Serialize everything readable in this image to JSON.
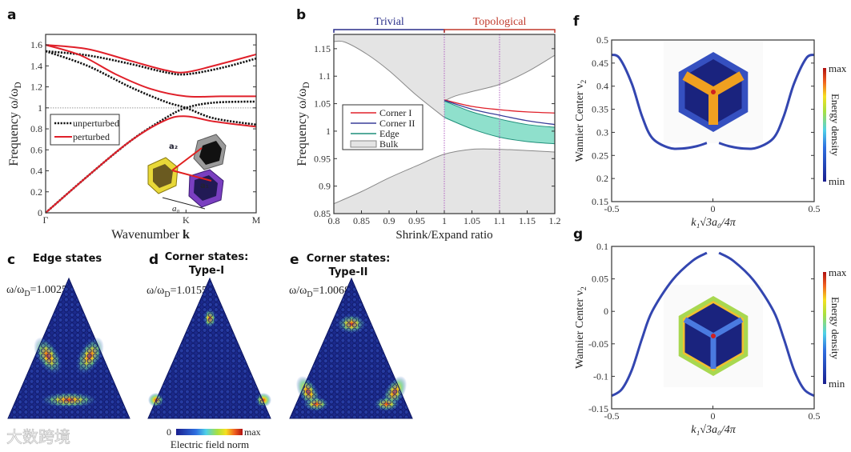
{
  "panel_labels": {
    "a": "a",
    "b": "b",
    "c": "c",
    "d": "d",
    "e": "e",
    "f": "f",
    "g": "g"
  },
  "watermark": "大数跨境",
  "chart_data": [
    {
      "id": "a",
      "type": "line",
      "xlabel": "Wavenumber ",
      "xlabel_bold": "k",
      "ylabel": "Frequency ω/ω",
      "ylabel_sub": "D",
      "xlim": [
        0,
        1.5
      ],
      "ylim": [
        0,
        1.7
      ],
      "xticks": [
        0,
        1,
        1.5
      ],
      "xtick_labels": [
        "Γ",
        "K",
        "M"
      ],
      "yticks": [
        0,
        0.2,
        0.4,
        0.6,
        0.8,
        1,
        1.2,
        1.4,
        1.6
      ],
      "ytick_labels": [
        "0",
        "0.2",
        "0.4",
        "0.6",
        "0.8",
        "1",
        "1.2",
        "1.4",
        "1.6"
      ],
      "reference_line": 1,
      "legend": {
        "position": "center-left",
        "entries": [
          "unperturbed",
          "perturbed"
        ]
      },
      "inset_labels": {
        "a1": "a₁",
        "a2": "a₂",
        "a0": "a₀"
      },
      "series": [
        {
          "name": "unperturbed",
          "color": "#111111",
          "style": "dotted",
          "bands": [
            [
              [
                0,
                0
              ],
              [
                0.3,
                0.35
              ],
              [
                0.6,
                0.68
              ],
              [
                0.85,
                0.9
              ],
              [
                1,
                1.0
              ],
              [
                1.2,
                1.05
              ],
              [
                1.5,
                1.06
              ]
            ],
            [
              [
                0,
                1.54
              ],
              [
                0.3,
                1.4
              ],
              [
                0.6,
                1.2
              ],
              [
                0.85,
                1.06
              ],
              [
                1,
                1.0
              ],
              [
                1.2,
                0.9
              ],
              [
                1.5,
                0.84
              ]
            ],
            [
              [
                0,
                1.54
              ],
              [
                0.3,
                1.5
              ],
              [
                0.6,
                1.42
              ],
              [
                0.85,
                1.34
              ],
              [
                1,
                1.32
              ],
              [
                1.25,
                1.38
              ],
              [
                1.5,
                1.47
              ]
            ]
          ]
        },
        {
          "name": "perturbed",
          "color": "#e0202a",
          "style": "solid",
          "bands": [
            [
              [
                0,
                0
              ],
              [
                0.3,
                0.35
              ],
              [
                0.6,
                0.68
              ],
              [
                0.85,
                0.88
              ],
              [
                1,
                0.92
              ],
              [
                1.2,
                0.87
              ],
              [
                1.5,
                0.82
              ]
            ],
            [
              [
                0,
                1.6
              ],
              [
                0.25,
                1.5
              ],
              [
                0.5,
                1.32
              ],
              [
                0.75,
                1.18
              ],
              [
                1,
                1.11
              ],
              [
                1.25,
                1.11
              ],
              [
                1.5,
                1.11
              ]
            ],
            [
              [
                0,
                1.6
              ],
              [
                0.3,
                1.56
              ],
              [
                0.6,
                1.45
              ],
              [
                0.85,
                1.36
              ],
              [
                1,
                1.34
              ],
              [
                1.25,
                1.42
              ],
              [
                1.5,
                1.51
              ]
            ]
          ]
        }
      ]
    },
    {
      "id": "b",
      "type": "area",
      "xlabel": "Shrink/Expand ratio",
      "ylabel": "Frequency ω/ω",
      "ylabel_sub": "D",
      "xlim": [
        0.8,
        1.2
      ],
      "ylim": [
        0.85,
        1.176
      ],
      "xticks": [
        0.8,
        0.85,
        0.9,
        0.95,
        1,
        1.05,
        1.1,
        1.15,
        1.2
      ],
      "xtick_labels": [
        "0.8",
        "0.85",
        "0.9",
        "0.95",
        "1",
        "1.05",
        "1.1",
        "1.15",
        "1.2"
      ],
      "yticks": [
        0.85,
        0.9,
        0.95,
        1,
        1.05,
        1.1,
        1.15
      ],
      "ytick_labels": [
        "0.85",
        "0.9",
        "0.95",
        "1",
        "1.05",
        "1.1",
        "1.15"
      ],
      "regions": [
        {
          "label": "Trivial",
          "range": [
            0.8,
            1
          ],
          "color": "#2a2f8a"
        },
        {
          "label": "Topological",
          "range": [
            1,
            1.2
          ],
          "color": "#c0392b"
        }
      ],
      "vlines": [
        1,
        1.1
      ],
      "legend": {
        "position": "center-left",
        "entries": [
          "Corner I",
          "Corner II",
          "Edge",
          "Bulk"
        ]
      },
      "bulk_upper": [
        [
          0.8,
          1.163
        ],
        [
          0.82,
          1.162
        ],
        [
          0.86,
          1.14
        ],
        [
          0.9,
          1.11
        ],
        [
          0.95,
          1.065
        ],
        [
          1,
          1.025
        ]
      ],
      "bulk_upper_topo": [
        [
          1,
          1.055
        ],
        [
          1.02,
          1.064
        ],
        [
          1.05,
          1.072
        ],
        [
          1.1,
          1.085
        ],
        [
          1.15,
          1.108
        ],
        [
          1.2,
          1.138
        ]
      ],
      "bulk_lower": [
        [
          0.8,
          0.868
        ],
        [
          0.85,
          0.89
        ],
        [
          0.9,
          0.915
        ],
        [
          0.95,
          0.937
        ],
        [
          1,
          0.958
        ],
        [
          1.05,
          0.967
        ],
        [
          1.1,
          0.967
        ],
        [
          1.2,
          0.962
        ]
      ],
      "series": [
        {
          "name": "Corner I",
          "color": "#e0202a",
          "points": [
            [
              1,
              1.057
            ],
            [
              1.05,
              1.045
            ],
            [
              1.1,
              1.039
            ],
            [
              1.15,
              1.035
            ],
            [
              1.2,
              1.033
            ]
          ]
        },
        {
          "name": "Corner II",
          "color": "#3a3f9a",
          "points": [
            [
              1,
              1.056
            ],
            [
              1.05,
              1.04
            ],
            [
              1.1,
              1.029
            ],
            [
              1.15,
              1.019
            ],
            [
              1.2,
              1.012
            ]
          ]
        },
        {
          "name": "Edge",
          "color": "#1f8f7a",
          "fill": "#8fe0cc",
          "upper": [
            [
              1,
              1.055
            ],
            [
              1.05,
              1.035
            ],
            [
              1.1,
              1.022
            ],
            [
              1.15,
              1.012
            ],
            [
              1.2,
              1.007
            ]
          ],
          "lower": [
            [
              1,
              1.025
            ],
            [
              1.05,
              1.004
            ],
            [
              1.1,
              0.989
            ],
            [
              1.15,
              0.981
            ],
            [
              1.2,
              0.977
            ]
          ]
        },
        {
          "name": "Bulk",
          "color": "#999999",
          "fill": "#e4e4e4"
        }
      ]
    },
    {
      "id": "c",
      "type": "heatmap",
      "title": "Edge states",
      "freq_prefix": "ω/ω",
      "freq_sub": "D",
      "freq_value": "=1.0025"
    },
    {
      "id": "d",
      "type": "heatmap",
      "title": "Corner states:",
      "subtitle": "Type-I",
      "freq_prefix": "ω/ω",
      "freq_sub": "D",
      "freq_value": "=1.0155",
      "colorbar": {
        "min_label": "0",
        "max_label": "max",
        "label": "Electric field norm"
      }
    },
    {
      "id": "e",
      "type": "heatmap",
      "title": "Corner states:",
      "subtitle": "Type-II",
      "freq_prefix": "ω/ω",
      "freq_sub": "D",
      "freq_value": "=1.0068"
    },
    {
      "id": "f",
      "type": "line",
      "xlabel": "k₁√3a₀/4π",
      "ylabel": "Wannier Center ν",
      "ylabel_sub": "2",
      "xlim": [
        -0.5,
        0.5
      ],
      "ylim": [
        0.15,
        0.5
      ],
      "xticks": [
        -0.5,
        0,
        0.5
      ],
      "xtick_labels": [
        "-0.5",
        "0",
        "0.5"
      ],
      "yticks": [
        0.15,
        0.2,
        0.25,
        0.3,
        0.35,
        0.4,
        0.45,
        0.5
      ],
      "ytick_labels": [
        "0.15",
        "0.2",
        "0.25",
        "0.3",
        "0.35",
        "0.4",
        "0.45",
        "0.5"
      ],
      "colorbar": {
        "min_label": "min",
        "max_label": "max",
        "label": "Energy density"
      },
      "series": [
        {
          "name": "Wannier center",
          "color": "#3346b0",
          "segments": [
            [
              [
                -0.5,
                0.468
              ],
              [
                -0.46,
                0.46
              ],
              [
                -0.4,
                0.405
              ],
              [
                -0.35,
                0.335
              ],
              [
                -0.3,
                0.288
              ],
              [
                -0.22,
                0.267
              ],
              [
                -0.15,
                0.265
              ],
              [
                -0.08,
                0.27
              ],
              [
                -0.03,
                0.277
              ]
            ],
            [
              [
                0.03,
                0.277
              ],
              [
                0.08,
                0.27
              ],
              [
                0.15,
                0.265
              ],
              [
                0.22,
                0.267
              ],
              [
                0.3,
                0.288
              ],
              [
                0.35,
                0.335
              ],
              [
                0.4,
                0.405
              ],
              [
                0.46,
                0.46
              ],
              [
                0.5,
                0.468
              ]
            ]
          ]
        }
      ]
    },
    {
      "id": "g",
      "type": "line",
      "xlabel": "k₁√3a₀/4π",
      "ylabel": "Wannier Center ν",
      "ylabel_sub": "2",
      "xlim": [
        -0.5,
        0.5
      ],
      "ylim": [
        -0.15,
        0.1
      ],
      "xticks": [
        -0.5,
        0,
        0.5
      ],
      "xtick_labels": [
        "-0.5",
        "0",
        "0.5"
      ],
      "yticks": [
        -0.15,
        -0.1,
        -0.05,
        0,
        0.05,
        0.1
      ],
      "ytick_labels": [
        "-0.15",
        "-0.1",
        "-0.05",
        "0",
        "0.05",
        "0.1"
      ],
      "colorbar": {
        "min_label": "min",
        "max_label": "max",
        "label": "Energy density"
      },
      "series": [
        {
          "name": "Wannier center",
          "color": "#3346b0",
          "segments": [
            [
              [
                -0.5,
                -0.13
              ],
              [
                -0.45,
                -0.12
              ],
              [
                -0.4,
                -0.09
              ],
              [
                -0.35,
                -0.042
              ],
              [
                -0.3,
                0.0
              ],
              [
                -0.2,
                0.048
              ],
              [
                -0.1,
                0.078
              ],
              [
                -0.03,
                0.09
              ]
            ],
            [
              [
                0.03,
                0.09
              ],
              [
                0.1,
                0.078
              ],
              [
                0.2,
                0.048
              ],
              [
                0.3,
                0.0
              ],
              [
                0.35,
                -0.042
              ],
              [
                0.4,
                -0.09
              ],
              [
                0.45,
                -0.12
              ],
              [
                0.5,
                -0.13
              ]
            ]
          ]
        }
      ]
    }
  ]
}
